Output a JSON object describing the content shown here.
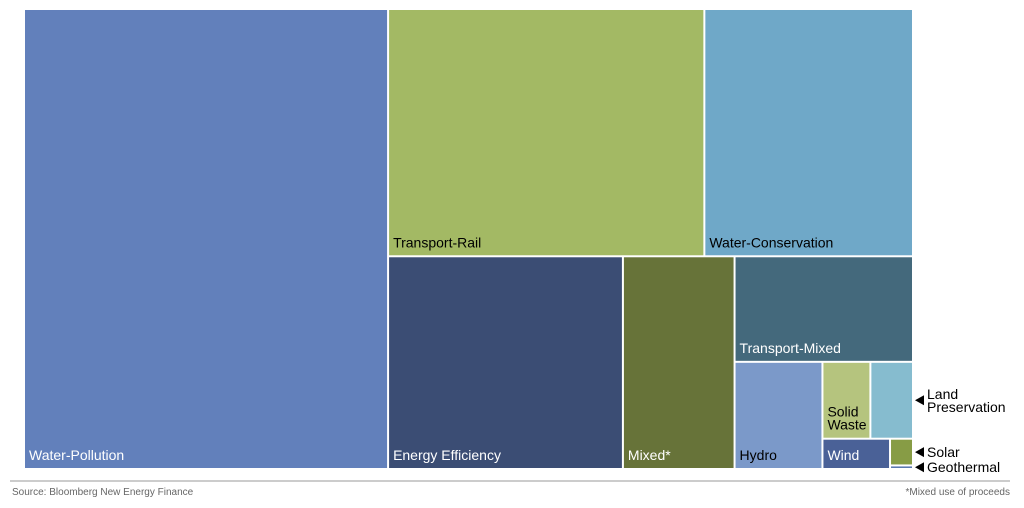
{
  "chart_data": {
    "type": "treemap",
    "categories": [
      "Water-Pollution",
      "Transport-Rail",
      "Water-Conservation",
      "Energy Efficiency",
      "Mixed*",
      "Transport-Mixed",
      "Hydro",
      "Solid Waste",
      "Land Preservation",
      "Wind",
      "Solar",
      "Geothermal"
    ],
    "values": [
      40.9,
      19.1,
      12.6,
      12.2,
      5.8,
      4.6,
      2.3,
      0.9,
      0.8,
      0.5,
      0.15,
      0.02
    ],
    "colors": [
      "#6280bb",
      "#a3b964",
      "#6fa8c8",
      "#3b4d74",
      "#677339",
      "#44697c",
      "#7b99c9",
      "#b5c47e",
      "#86bccf",
      "#4a6197",
      "#879c45",
      "#5a78b0"
    ],
    "source": "Source: Bloomberg New Energy Finance",
    "footnote": "*Mixed use of proceeds"
  }
}
